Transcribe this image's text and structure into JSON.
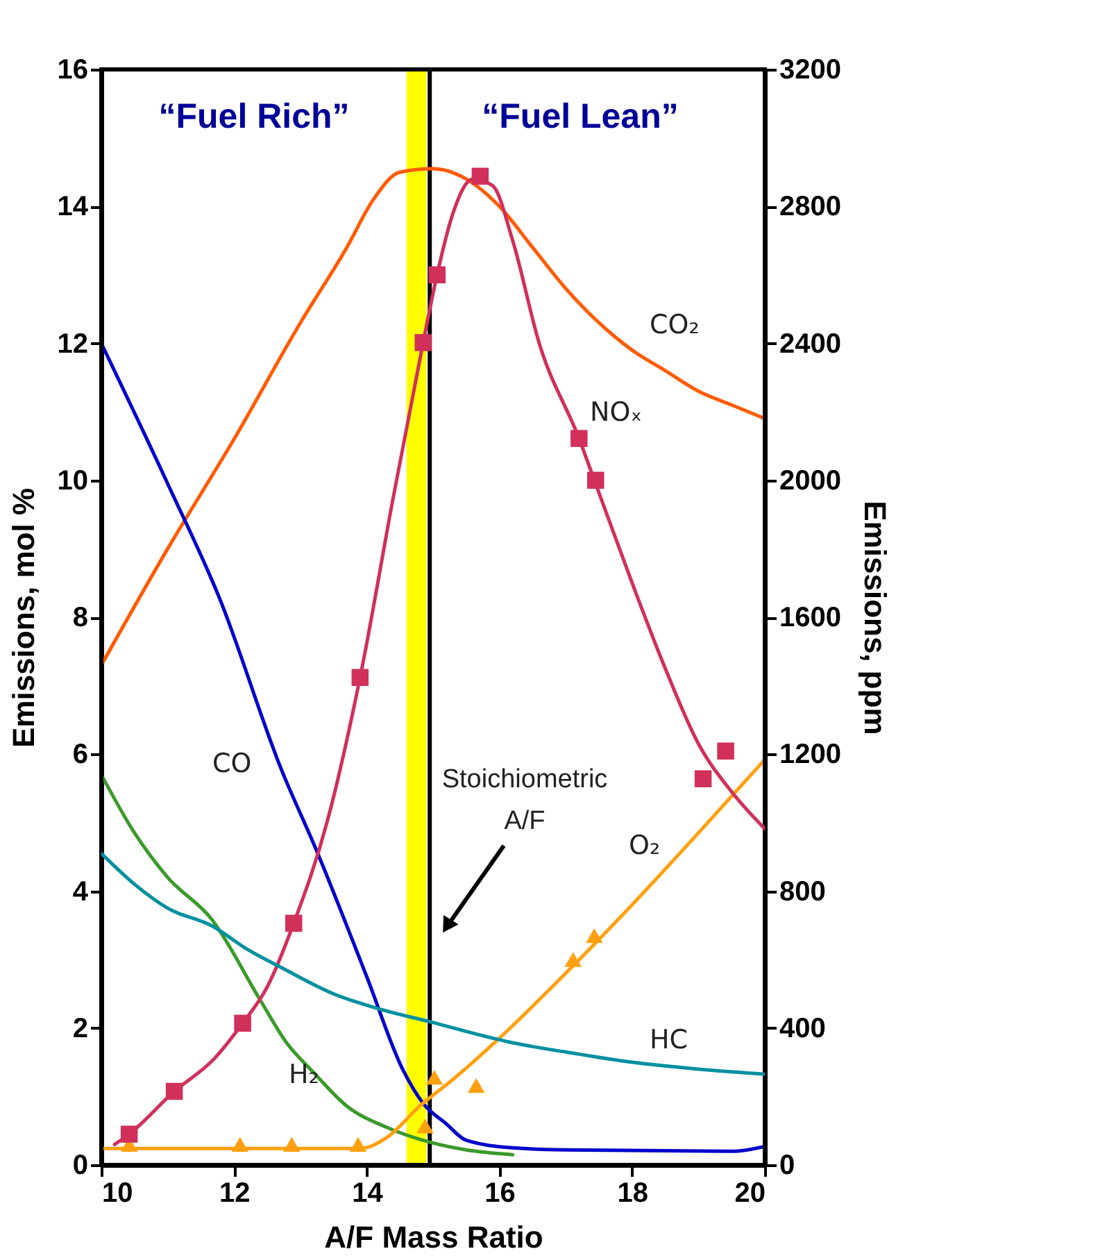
{
  "chart_data": {
    "type": "line",
    "xlabel": "A/F Mass Ratio",
    "ylabel": "Emissions, mol %",
    "y2label": "Emissions, ppm",
    "xlim": [
      10,
      20
    ],
    "xticks": [
      10,
      12,
      14,
      16,
      18,
      20
    ],
    "ylim": [
      0,
      16
    ],
    "yticks": [
      0,
      2,
      4,
      6,
      8,
      10,
      12,
      14,
      16
    ],
    "y2lim": [
      0,
      3200
    ],
    "y2ticks": [
      0,
      400,
      800,
      1200,
      1600,
      2000,
      2400,
      2800,
      3200
    ],
    "grid": false,
    "line_style": "solid",
    "marker": "none",
    "annotations": [
      "“Fuel Rich”",
      "“Fuel Lean”"
    ],
    "bands": [
      {
        "axis": "x",
        "from": 14.6,
        "to": 14.9,
        "color": "#ffff00"
      }
    ],
    "ref_lines": [
      {
        "axis": "x",
        "value": 14.95,
        "label": "Stoichiometric A/F",
        "color": "#000000"
      }
    ],
    "series": [
      {
        "name": "CO₂",
        "color": "#ff5a00",
        "x": [
          10,
          11,
          12,
          13,
          13.7,
          14.1,
          14.5,
          15,
          15.5,
          16,
          16.5,
          17,
          17.5,
          18,
          18.5,
          19,
          19.5,
          20
        ],
        "values": [
          7.3,
          9.0,
          10.6,
          12.3,
          13.4,
          14.1,
          14.5,
          14.55,
          14.4,
          14.0,
          13.4,
          12.8,
          12.3,
          11.9,
          11.6,
          11.3,
          11.1,
          10.9
        ]
      },
      {
        "name": "NOₓ",
        "color": "#d0305a",
        "axis": "y2",
        "x": [
          10.2,
          10.42,
          11.1,
          11.7,
          12.13,
          12.5,
          12.9,
          13.4,
          13.9,
          14.4,
          14.85,
          15.06,
          15.3,
          15.6,
          15.9,
          16.2,
          16.6,
          17.2,
          17.45,
          18,
          18.5,
          19,
          19.5,
          20
        ],
        "values": [
          60,
          90,
          215,
          310,
          414,
          520,
          706,
          1000,
          1424,
          1950,
          2402,
          2600,
          2780,
          2880,
          2860,
          2700,
          2400,
          2122,
          1990,
          1700,
          1450,
          1230,
          1090,
          982
        ]
      },
      {
        "type": "scatter",
        "marker": "square",
        "color": "#d0305a",
        "axis": "y2",
        "x": [
          10.42,
          11.1,
          12.13,
          12.9,
          13.9,
          14.85,
          15.06,
          15.71,
          17.2,
          17.45,
          19.07,
          19.41
        ],
        "values": [
          90,
          215,
          414,
          706,
          1424,
          2402,
          2600,
          2888,
          2122,
          2000,
          1128,
          1209
        ]
      },
      {
        "name": "CO",
        "color": "#0000cc",
        "x": [
          10,
          11,
          11.78,
          12.72,
          13.24,
          14,
          14.54,
          14.85,
          15.2,
          15.5,
          16.2,
          17,
          19.5,
          20
        ],
        "values": [
          12,
          9.95,
          8.28,
          5.76,
          4.6,
          2.75,
          1.4,
          0.9,
          0.6,
          0.36,
          0.25,
          0.22,
          0.2,
          0.27
        ]
      },
      {
        "name": "H₂",
        "color": "#3a9a2a",
        "x": [
          10,
          10.5,
          11,
          11.67,
          12.4,
          12.78,
          13.2,
          13.7,
          14.3,
          14.96,
          15.5,
          16.2
        ],
        "values": [
          5.7,
          4.85,
          4.2,
          3.58,
          2.4,
          1.8,
          1.35,
          0.86,
          0.55,
          0.33,
          0.22,
          0.15
        ]
      },
      {
        "name": "HC",
        "color": "#0090a0",
        "axis": "y2",
        "x": [
          10,
          10.5,
          11,
          11.67,
          12.2,
          12.72,
          13.5,
          14.2,
          14.96,
          15.6,
          16.2,
          17,
          18,
          19,
          20
        ],
        "values": [
          910,
          820,
          750,
          698,
          630,
          576,
          500,
          455,
          418,
          385,
          357,
          330,
          300,
          280,
          265
        ]
      },
      {
        "name": "O₂",
        "color": "#ffa010",
        "x": [
          10,
          13.9,
          14.3,
          14.81,
          15.3,
          15.92,
          17,
          18,
          19,
          20
        ],
        "values": [
          0.24,
          0.24,
          0.4,
          0.87,
          1.25,
          1.78,
          2.8,
          3.8,
          4.85,
          5.92
        ]
      },
      {
        "type": "scatter",
        "marker": "triangle",
        "color": "#ffa010",
        "x": [
          10.42,
          12.09,
          12.87,
          13.87,
          14.88,
          15.02,
          15.65,
          17.11,
          17.43
        ],
        "values": [
          0.3,
          0.3,
          0.3,
          0.3,
          0.57,
          1.28,
          1.16,
          3.0,
          3.35
        ]
      }
    ]
  }
}
